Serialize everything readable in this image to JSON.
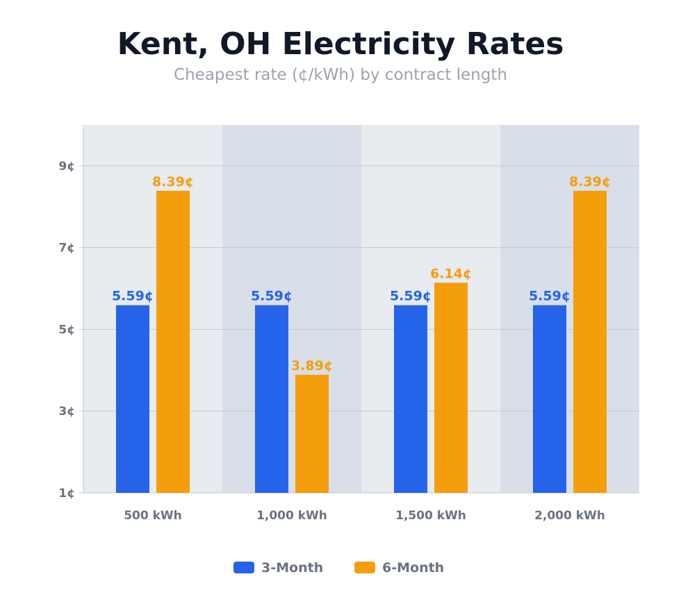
{
  "chart_data": {
    "type": "bar",
    "title": "Kent, OH Electricity Rates",
    "subtitle": "Cheapest rate (¢/kWh) by contract length",
    "categories": [
      "500 kWh",
      "1,000 kWh",
      "1,500 kWh",
      "2,000 kWh"
    ],
    "series": [
      {
        "name": "3-Month",
        "color": "#2563eb",
        "values": [
          5.59,
          5.59,
          5.59,
          5.59
        ],
        "labels": [
          "5.59¢",
          "5.59¢",
          "5.59¢",
          "5.59¢"
        ]
      },
      {
        "name": "6-Month",
        "color": "#f59e0b",
        "values": [
          8.39,
          3.89,
          6.14,
          8.39
        ],
        "labels": [
          "8.39¢",
          "3.89¢",
          "6.14¢",
          "8.39¢"
        ]
      }
    ],
    "ylim": [
      1,
      10
    ],
    "yticks": [
      1,
      3,
      5,
      7,
      9
    ],
    "ytick_labels": [
      "1¢",
      "3¢",
      "5¢",
      "7¢",
      "9¢"
    ],
    "grid": true,
    "legend_position": "bottom",
    "band_colors": [
      "#e8ebf0",
      "#d8dfe8"
    ]
  }
}
